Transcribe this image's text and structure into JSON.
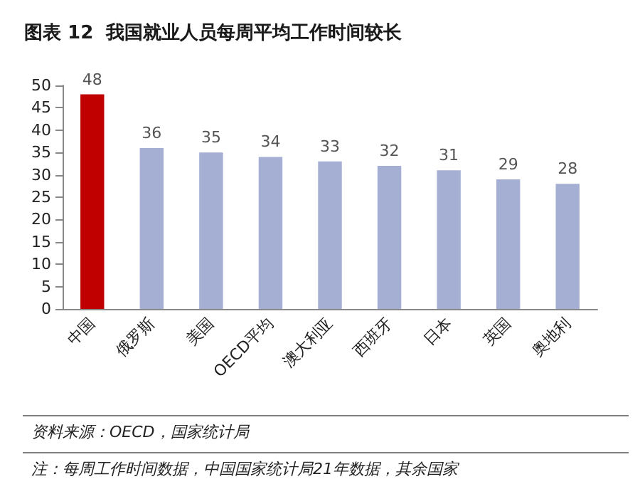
{
  "chart_data": {
    "type": "bar",
    "title": "图表 12  我国就业人员每周平均工作时间较长",
    "categories": [
      "中国",
      "俄罗斯",
      "美国",
      "OECD平均",
      "澳大利亚",
      "西班牙",
      "日本",
      "英国",
      "奥地利"
    ],
    "values": [
      48,
      36,
      35,
      34,
      33,
      32,
      31,
      29,
      28
    ],
    "colors": [
      "#c00000",
      "#a5aed3",
      "#a5aed3",
      "#a5aed3",
      "#a5aed3",
      "#a5aed3",
      "#a5aed3",
      "#a5aed3",
      "#a5aed3"
    ],
    "ylim": [
      0,
      50
    ],
    "yticks": [
      0,
      5,
      10,
      15,
      20,
      25,
      30,
      35,
      40,
      45,
      50
    ],
    "grid": false,
    "data_labels": true,
    "annotations": [
      "资料来源：OECD，国家统计局",
      "注：每周工作时间数据，中国国家统计局21年数据，其余国家"
    ]
  }
}
